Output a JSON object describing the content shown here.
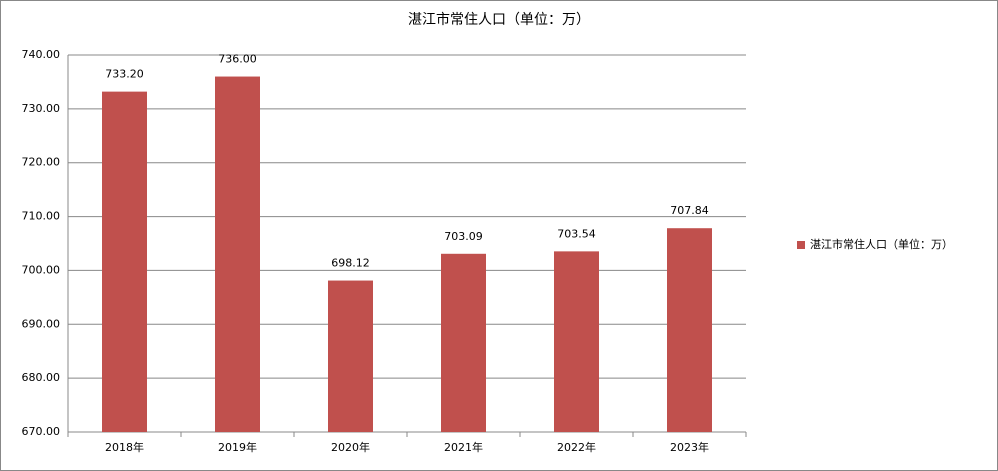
{
  "chart_data": {
    "type": "bar",
    "title": "湛江市常住人口（单位：万）",
    "categories": [
      "2018年",
      "2019年",
      "2020年",
      "2021年",
      "2022年",
      "2023年"
    ],
    "series": [
      {
        "name": "湛江市常住人口（单位：万）",
        "color": "#c0504d",
        "values": [
          733.2,
          736,
          698.12,
          703.09,
          703.54,
          707.84
        ],
        "value_labels": [
          "733.20",
          "736.00",
          "698.12",
          "703.09",
          "703.54",
          "707.84"
        ]
      }
    ],
    "ylim": [
      670,
      740
    ],
    "yticks": [
      {
        "value": 670,
        "label": "670.00"
      },
      {
        "value": 680,
        "label": "680.00"
      },
      {
        "value": 690,
        "label": "690.00"
      },
      {
        "value": 700,
        "label": "700.00"
      },
      {
        "value": 710,
        "label": "710.00"
      },
      {
        "value": 720,
        "label": "720.00"
      },
      {
        "value": 730,
        "label": "730.00"
      },
      {
        "value": 740,
        "label": "740.00"
      }
    ],
    "grid": true,
    "legend": "right"
  }
}
